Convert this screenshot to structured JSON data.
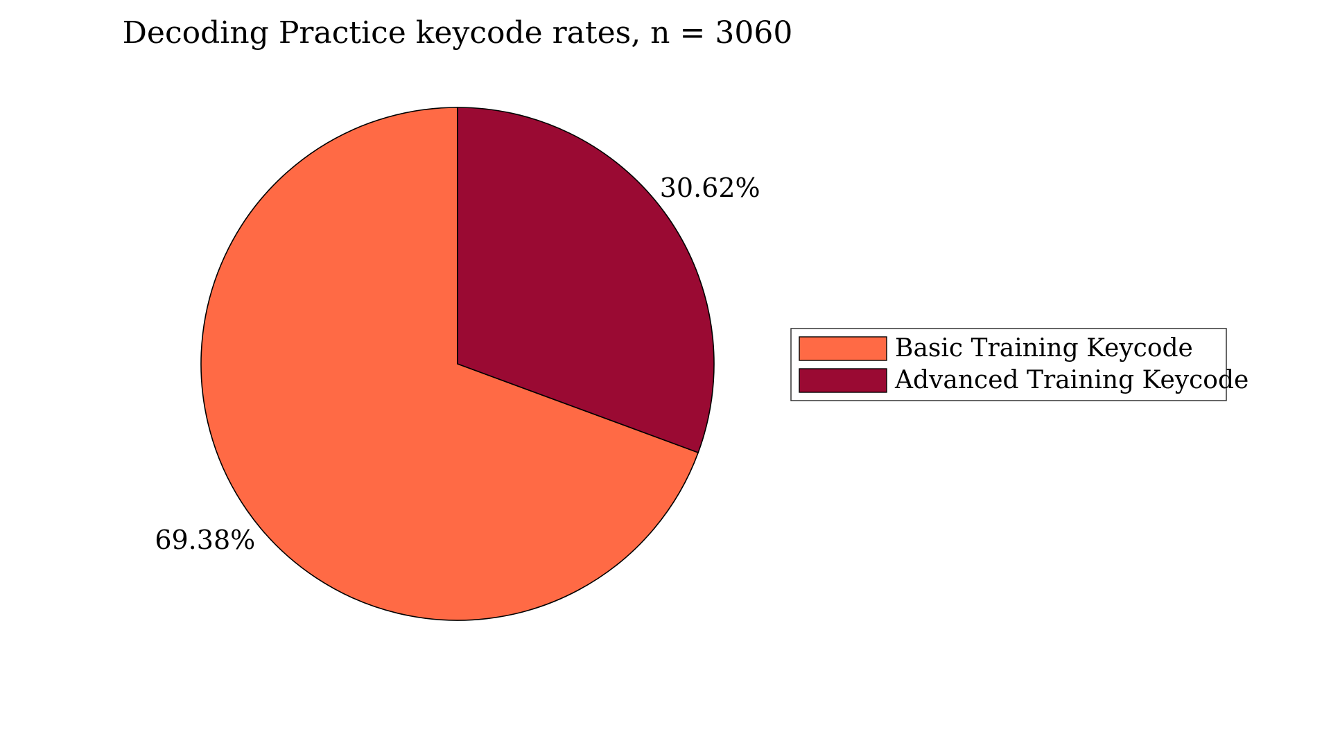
{
  "chart_data": {
    "type": "pie",
    "title": "Decoding Practice keycode rates, n = 3060",
    "slices": [
      {
        "name": "Basic Training Keycode",
        "value": 69.38,
        "label": "69.38%",
        "color": "#ff6a45"
      },
      {
        "name": "Advanced Training Keycode",
        "value": 30.62,
        "label": "30.62%",
        "color": "#9a0a33"
      }
    ],
    "legend": {
      "placement": "right",
      "entries": [
        "Basic Training Keycode",
        "Advanced Training Keycode"
      ]
    },
    "start_angle_deg": 90,
    "direction": "clockwise",
    "edge_color": "#000000"
  }
}
